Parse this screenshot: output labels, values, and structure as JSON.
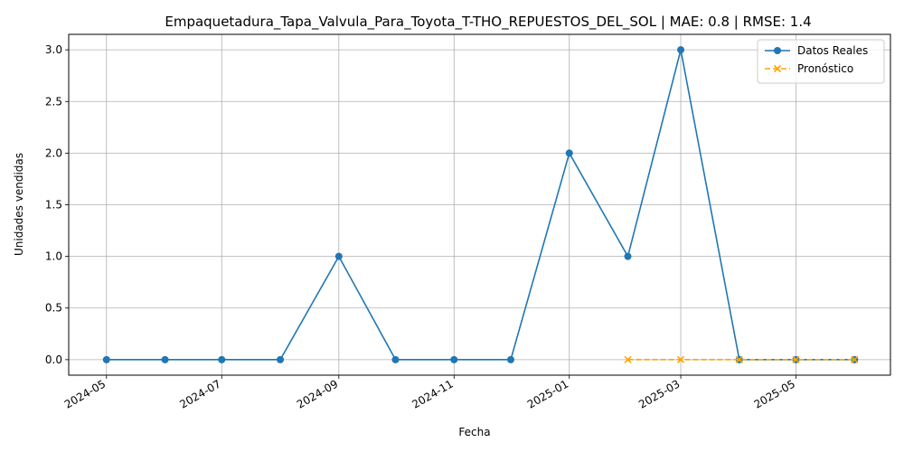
{
  "chart_data": {
    "type": "line",
    "title": "Empaquetadura_Tapa_Valvula_Para_Toyota_T-THO_REPUESTOS_DEL_SOL | MAE: 0.8 | RMSE: 1.4",
    "xlabel": "Fecha",
    "ylabel": "Unidades vendidas",
    "xlim": [
      "2024-04-11",
      "2025-06-20"
    ],
    "ylim": [
      -0.15,
      3.15
    ],
    "x_ticks": [
      "2024-05",
      "2024-07",
      "2024-09",
      "2024-11",
      "2025-01",
      "2025-03",
      "2025-05"
    ],
    "y_ticks": [
      "0.0",
      "0.5",
      "1.0",
      "1.5",
      "2.0",
      "2.5",
      "3.0"
    ],
    "grid": true,
    "legend_position": "top-right",
    "series": [
      {
        "name": "Datos Reales",
        "color": "#1f77b4",
        "marker": "circle",
        "line_style": "solid",
        "x": [
          "2024-05-01",
          "2024-06-01",
          "2024-07-01",
          "2024-08-01",
          "2024-09-01",
          "2024-10-01",
          "2024-11-01",
          "2024-12-01",
          "2025-01-01",
          "2025-02-01",
          "2025-03-01",
          "2025-04-01",
          "2025-05-01",
          "2025-06-01"
        ],
        "values": [
          0,
          0,
          0,
          0,
          1,
          0,
          0,
          0,
          2,
          1,
          3,
          0,
          0,
          0
        ]
      },
      {
        "name": "Pronóstico",
        "color": "#ffa500",
        "marker": "x",
        "line_style": "dashed",
        "x": [
          "2025-02-01",
          "2025-03-01",
          "2025-04-01",
          "2025-05-01",
          "2025-06-01"
        ],
        "values": [
          0,
          0,
          0,
          0,
          0
        ]
      }
    ]
  }
}
